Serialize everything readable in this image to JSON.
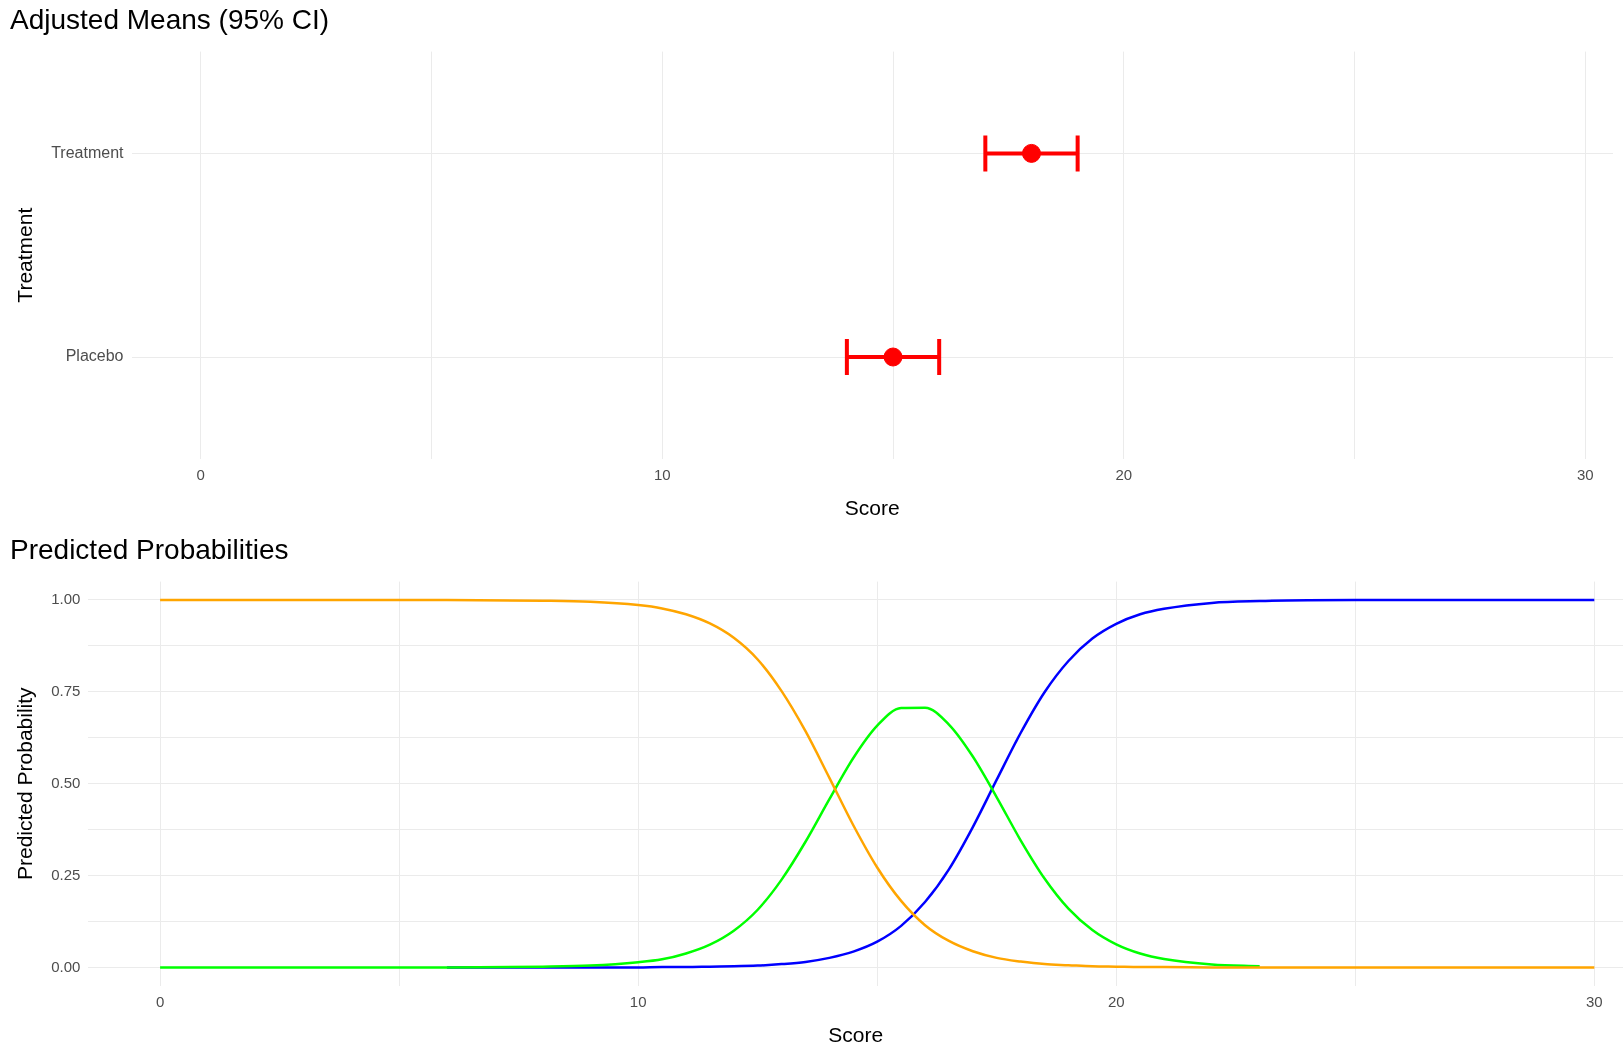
{
  "chart_data": [
    {
      "type": "scatter",
      "title": "Adjusted Means (95% CI)",
      "orientation": "horizontal",
      "categories": [
        "Treatment",
        "Placebo"
      ],
      "values": [
        18,
        15
      ],
      "errors": [
        [
          17,
          19
        ],
        [
          14,
          16
        ]
      ],
      "color": "#ff0000",
      "marker": "circle",
      "xlim": [
        -1.5,
        30.6
      ],
      "xticks": [
        0,
        {
          "value": 5,
          "label": null
        },
        10,
        {
          "value": 15,
          "label": null
        },
        20,
        {
          "value": 25,
          "label": null
        },
        30
      ],
      "grid": true,
      "xlabel": "Score",
      "ylabel": "Treatment"
    },
    {
      "type": "line",
      "title": "Predicted Probabilities",
      "x": [
        0,
        2,
        4,
        6,
        8,
        9,
        10,
        10.5,
        11,
        11.5,
        12,
        12.5,
        13,
        13.5,
        14,
        14.5,
        15,
        15.5,
        16,
        16.5,
        17,
        17.5,
        18,
        18.5,
        19,
        19.5,
        20,
        20.5,
        21,
        22,
        23,
        24,
        26,
        28,
        30
      ],
      "series": [
        {
          "color": "#ffa500",
          "values": [
            1,
            1,
            1,
            1,
            0.998,
            0.995,
            0.986,
            0.977,
            0.961,
            0.936,
            0.897,
            0.838,
            0.752,
            0.643,
            0.516,
            0.387,
            0.272,
            0.181,
            0.115,
            0.072,
            0.044,
            0.026,
            0.016,
            0.009,
            0.006,
            0.003,
            0.002,
            0.001,
            0.001,
            0,
            0,
            0,
            0,
            0,
            0
          ]
        },
        {
          "color": "#00ff00",
          "values": [
            0,
            0,
            0,
            0,
            0.002,
            0.005,
            0.014,
            0.022,
            0.038,
            0.062,
            0.1,
            0.157,
            0.239,
            0.342,
            0.458,
            0.57,
            0.658,
            0.706,
            0.707,
            0.661,
            0.574,
            0.463,
            0.346,
            0.242,
            0.16,
            0.102,
            0.063,
            0.038,
            0.023,
            0.008,
            0.003,
            null,
            null,
            null,
            null
          ]
        },
        {
          "color": "#0000ff",
          "values": [
            null,
            null,
            null,
            0,
            0,
            0,
            0,
            0.001,
            0.001,
            0.002,
            0.003,
            0.005,
            0.009,
            0.015,
            0.026,
            0.043,
            0.07,
            0.113,
            0.178,
            0.267,
            0.382,
            0.511,
            0.638,
            0.749,
            0.834,
            0.895,
            0.935,
            0.961,
            0.976,
            0.992,
            0.997,
            0.999,
            1,
            1,
            1
          ]
        }
      ],
      "xlim": [
        -1.5,
        30.6
      ],
      "ylim": [
        -0.05,
        1.05
      ],
      "xticks": [
        0,
        {
          "value": 5,
          "label": null
        },
        10,
        {
          "value": 15,
          "label": null
        },
        20,
        {
          "value": 25,
          "label": null
        },
        30
      ],
      "yticks": [
        {
          "value": 0,
          "label": "0.00"
        },
        {
          "value": 0.125,
          "label": null
        },
        {
          "value": 0.25,
          "label": "0.25"
        },
        {
          "value": 0.375,
          "label": null
        },
        {
          "value": 0.5,
          "label": "0.50"
        },
        {
          "value": 0.625,
          "label": null
        },
        {
          "value": 0.75,
          "label": "0.75"
        },
        {
          "value": 0.875,
          "label": null
        },
        {
          "value": 1,
          "label": "1.00"
        }
      ],
      "grid": true,
      "xlabel": "Score",
      "ylabel": "Predicted Probability"
    }
  ]
}
